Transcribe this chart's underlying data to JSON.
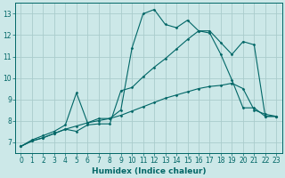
{
  "xlabel": "Humidex (Indice chaleur)",
  "ylabel": "",
  "background_color": "#cce8e8",
  "grid_color": "#aacccc",
  "line_color": "#006666",
  "xlim": [
    -0.5,
    23.5
  ],
  "ylim": [
    6.5,
    13.5
  ],
  "xticks": [
    0,
    1,
    2,
    3,
    4,
    5,
    6,
    7,
    8,
    9,
    10,
    11,
    12,
    13,
    14,
    15,
    16,
    17,
    18,
    19,
    20,
    21,
    22,
    23
  ],
  "yticks": [
    7,
    8,
    9,
    10,
    11,
    12,
    13
  ],
  "line1_x": [
    0,
    1,
    2,
    3,
    4,
    5,
    6,
    7,
    8,
    9,
    10,
    11,
    12,
    13,
    14,
    15,
    16,
    17,
    18,
    19,
    20,
    21,
    22,
    23
  ],
  "line1_y": [
    6.8,
    7.1,
    7.3,
    7.5,
    7.8,
    9.3,
    7.9,
    8.1,
    8.1,
    8.5,
    11.4,
    13.0,
    13.2,
    12.5,
    12.35,
    12.7,
    12.2,
    12.1,
    11.1,
    9.9,
    8.6,
    8.6,
    8.2,
    8.2
  ],
  "line2_x": [
    0,
    1,
    2,
    3,
    4,
    5,
    6,
    7,
    8,
    9,
    10,
    11,
    12,
    13,
    14,
    15,
    16,
    17,
    18,
    19,
    20,
    21,
    22,
    23
  ],
  "line2_y": [
    6.8,
    7.05,
    7.2,
    7.4,
    7.6,
    7.5,
    7.8,
    7.85,
    7.85,
    9.4,
    9.55,
    10.05,
    10.5,
    10.9,
    11.35,
    11.8,
    12.2,
    12.2,
    11.65,
    11.1,
    11.7,
    11.55,
    8.2,
    8.2
  ],
  "line3_x": [
    0,
    1,
    2,
    3,
    4,
    5,
    6,
    7,
    8,
    9,
    10,
    11,
    12,
    13,
    14,
    15,
    16,
    17,
    18,
    19,
    20,
    21,
    22,
    23
  ],
  "line3_y": [
    6.8,
    7.05,
    7.2,
    7.4,
    7.6,
    7.75,
    7.9,
    8.0,
    8.1,
    8.25,
    8.45,
    8.65,
    8.85,
    9.05,
    9.2,
    9.35,
    9.5,
    9.6,
    9.65,
    9.75,
    9.5,
    8.5,
    8.3,
    8.2
  ]
}
